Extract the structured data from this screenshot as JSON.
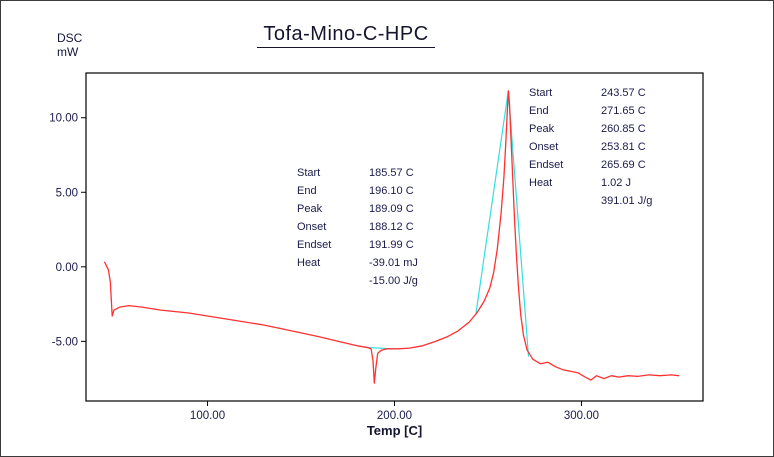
{
  "title": "Tofa-Mino-C-HPC",
  "y_axis_unit": "DSC\nmW",
  "x_axis_title": "Temp [C]",
  "colors": {
    "curve": "#ff3030",
    "baseline": "#35dede",
    "text": "#1b1b4b",
    "axis": "#000000",
    "background": "#ffffff"
  },
  "annotations": [
    {
      "rows": [
        [
          "Start",
          "185.57 C"
        ],
        [
          "End",
          "196.10 C"
        ],
        [
          "Peak",
          "189.09 C"
        ],
        [
          "Onset",
          "188.12 C"
        ],
        [
          "Endset",
          "191.99 C"
        ],
        [
          "Heat",
          "-39.01 mJ"
        ],
        [
          "",
          "-15.00 J/g"
        ]
      ]
    },
    {
      "rows": [
        [
          "Start",
          "243.57 C"
        ],
        [
          "End",
          "271.65 C"
        ],
        [
          "Peak",
          "260.85 C"
        ],
        [
          "Onset",
          "253.81 C"
        ],
        [
          "Endset",
          "265.69 C"
        ],
        [
          "Heat",
          "1.02 J"
        ],
        [
          "",
          "391.01 J/g"
        ]
      ]
    }
  ],
  "chart_data": {
    "type": "line",
    "title": "Tofa-Mino-C-HPC",
    "xlabel": "Temp [C]",
    "ylabel": "DSC mW",
    "xlim": [
      35,
      365
    ],
    "ylim": [
      -9,
      13
    ],
    "grid": false,
    "legend": false,
    "x_ticks": [
      100,
      200,
      300
    ],
    "x_tick_labels": [
      "100.00",
      "200.00",
      "300.00"
    ],
    "y_ticks": [
      10,
      5,
      0,
      -5
    ],
    "y_tick_labels": [
      "10.00",
      "5.00",
      "0.00",
      "-5.00"
    ],
    "series": [
      {
        "name": "dsc-curve",
        "color": "#ff3030",
        "width": 1.3,
        "points": [
          [
            45,
            0.3
          ],
          [
            47,
            -0.2
          ],
          [
            48,
            -1.0
          ],
          [
            49,
            -3.3
          ],
          [
            50,
            -2.9
          ],
          [
            53,
            -2.7
          ],
          [
            58,
            -2.6
          ],
          [
            65,
            -2.7
          ],
          [
            75,
            -2.9
          ],
          [
            90,
            -3.1
          ],
          [
            100,
            -3.3
          ],
          [
            115,
            -3.6
          ],
          [
            130,
            -3.9
          ],
          [
            145,
            -4.3
          ],
          [
            160,
            -4.7
          ],
          [
            170,
            -5.0
          ],
          [
            180,
            -5.3
          ],
          [
            185,
            -5.4
          ],
          [
            187.5,
            -5.5
          ],
          [
            188.5,
            -6.3
          ],
          [
            189.2,
            -7.8
          ],
          [
            190,
            -6.8
          ],
          [
            191,
            -5.8
          ],
          [
            193,
            -5.6
          ],
          [
            196,
            -5.5
          ],
          [
            202,
            -5.5
          ],
          [
            208,
            -5.45
          ],
          [
            215,
            -5.3
          ],
          [
            222,
            -5.0
          ],
          [
            228,
            -4.7
          ],
          [
            234,
            -4.3
          ],
          [
            240,
            -3.7
          ],
          [
            244,
            -3.1
          ],
          [
            248,
            -2.3
          ],
          [
            251,
            -1.4
          ],
          [
            253,
            -0.4
          ],
          [
            255,
            1.2
          ],
          [
            257,
            3.6
          ],
          [
            258.5,
            6.0
          ],
          [
            259.5,
            8.2
          ],
          [
            260.3,
            10.3
          ],
          [
            260.9,
            11.8
          ],
          [
            261.5,
            10.9
          ],
          [
            262.3,
            8.6
          ],
          [
            263.2,
            6.0
          ],
          [
            264.2,
            3.2
          ],
          [
            265.2,
            0.8
          ],
          [
            266.3,
            -1.4
          ],
          [
            267.5,
            -3.2
          ],
          [
            269,
            -4.6
          ],
          [
            271,
            -5.6
          ],
          [
            274,
            -6.2
          ],
          [
            278,
            -6.5
          ],
          [
            282,
            -6.4
          ],
          [
            286,
            -6.7
          ],
          [
            290,
            -6.9
          ],
          [
            294,
            -7.0
          ],
          [
            298,
            -7.1
          ],
          [
            302,
            -7.4
          ],
          [
            305,
            -7.6
          ],
          [
            308,
            -7.3
          ],
          [
            312,
            -7.5
          ],
          [
            316,
            -7.3
          ],
          [
            320,
            -7.4
          ],
          [
            325,
            -7.3
          ],
          [
            330,
            -7.35
          ],
          [
            336,
            -7.25
          ],
          [
            342,
            -7.3
          ],
          [
            348,
            -7.25
          ],
          [
            352,
            -7.3
          ]
        ]
      },
      {
        "name": "peak-baseline-main",
        "color": "#35dede",
        "width": 1.2,
        "points": [
          [
            243.57,
            -3.1
          ],
          [
            260.85,
            11.8
          ],
          [
            271.65,
            -6.0
          ]
        ]
      },
      {
        "name": "peak-baseline-minor",
        "color": "#35dede",
        "width": 1.2,
        "points": [
          [
            184,
            -5.4
          ],
          [
            199,
            -5.5
          ]
        ]
      }
    ]
  }
}
